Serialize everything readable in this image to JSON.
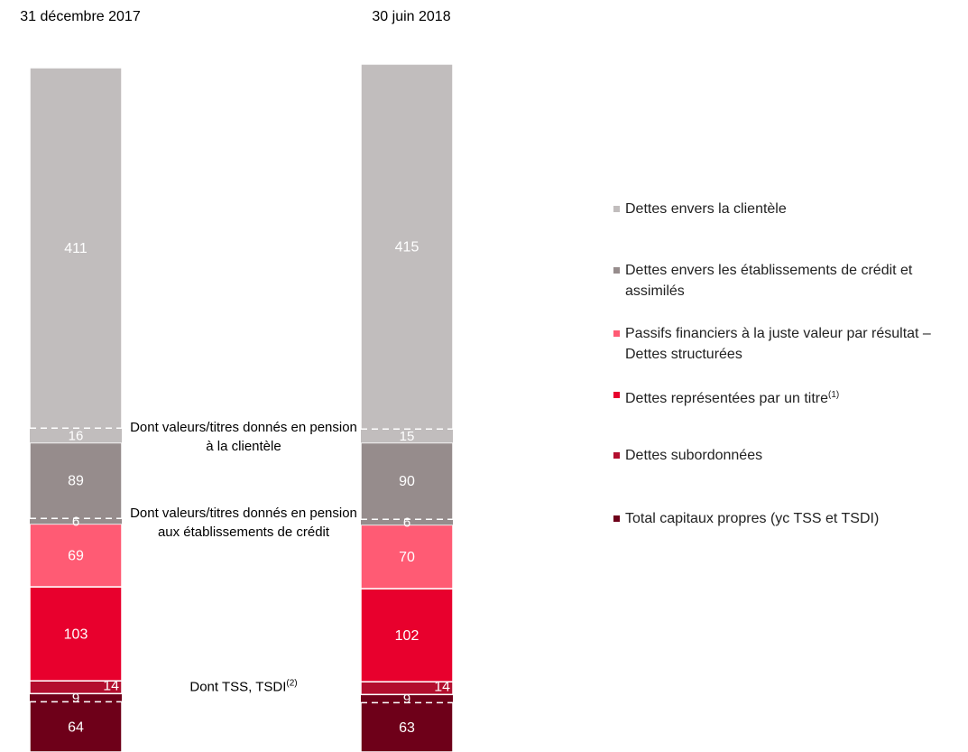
{
  "chart_data": {
    "type": "stacked_bar",
    "categories": [
      "31 décembre 2017",
      "30 juin 2018"
    ],
    "series": [
      {
        "name": "Dettes envers la clientèle",
        "color": "#c1bdbd",
        "values": [
          411,
          415
        ],
        "sub_values": [
          16,
          15
        ],
        "sub_label": "Dont valeurs/titres donnés en pension à la clientèle"
      },
      {
        "name": "Dettes envers les établissements de crédit et assimilés",
        "color": "#968c8c",
        "values": [
          89,
          90
        ],
        "sub_values": [
          6,
          6
        ],
        "sub_label": "Dont valeurs/titres donnés en pension aux établissements de crédit"
      },
      {
        "name": "Passifs financiers à la juste valeur par résultat – Dettes structurées",
        "color": "#ff5b74",
        "values": [
          69,
          70
        ]
      },
      {
        "name": "Dettes représentées par un titre",
        "name_note": "(1)",
        "color": "#e8002d",
        "values": [
          103,
          102
        ]
      },
      {
        "name": "Dettes subordonnées",
        "color": "#b30e2e",
        "values": [
          14,
          14
        ]
      },
      {
        "name": "Total capitaux propres (yc TSS et TSDI)",
        "color": "#6e0019",
        "values": [
          64,
          63
        ],
        "sub_values": [
          9,
          9
        ],
        "sub_label": "Dont  TSS, TSDI",
        "sub_label_note": "(2)"
      }
    ]
  }
}
